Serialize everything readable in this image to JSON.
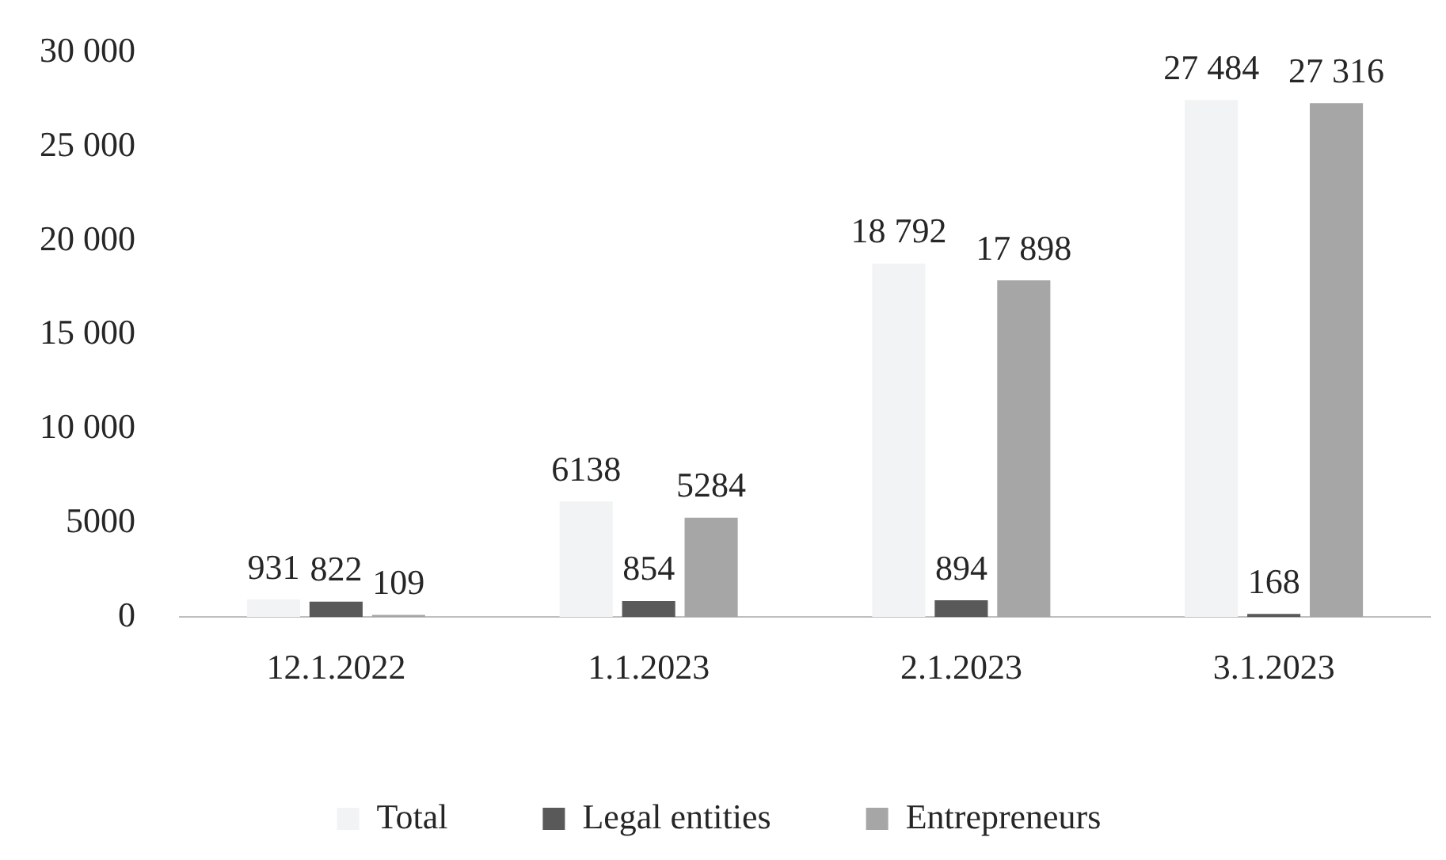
{
  "chart_data": {
    "type": "bar",
    "categories": [
      "12.1.2022",
      "1.1.2023",
      "2.1.2023",
      "3.1.2023"
    ],
    "series": [
      {
        "name": "Total",
        "color": "#f2f3f5",
        "values": [
          931,
          6138,
          18792,
          27484
        ],
        "value_labels": [
          "931",
          "6138",
          "18 792",
          "27 484"
        ]
      },
      {
        "name": "Legal entities",
        "color": "#595959",
        "values": [
          822,
          854,
          894,
          168
        ],
        "value_labels": [
          "822",
          "854",
          "894",
          "168"
        ]
      },
      {
        "name": "Entrepreneurs",
        "color": "#a6a6a6",
        "values": [
          109,
          5284,
          17898,
          27316
        ],
        "value_labels": [
          "109",
          "5284",
          "17 898",
          "27 316"
        ]
      }
    ],
    "ylim": [
      0,
      30000
    ],
    "yticks": [
      0,
      5000,
      {
        "value": 10000,
        "label": "10 000"
      },
      {
        "value": 15000,
        "label": "15 000"
      },
      {
        "value": 20000,
        "label": "20 000"
      },
      {
        "value": 25000,
        "label": "25 000"
      },
      {
        "value": 30000,
        "label": "30 000"
      }
    ],
    "grid": false,
    "legend": "bottom"
  }
}
